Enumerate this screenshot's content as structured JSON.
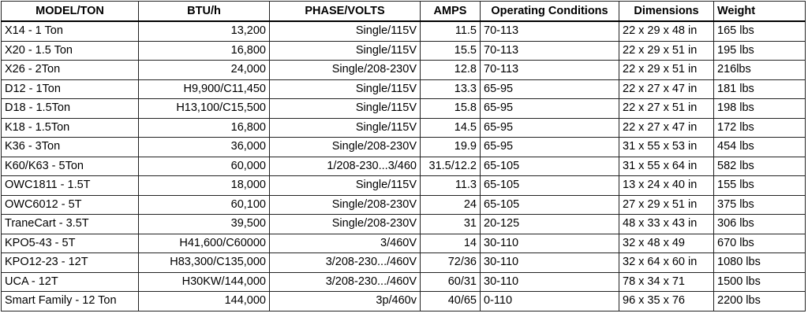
{
  "table": {
    "headers": [
      "MODEL/TON",
      "BTU/h",
      "PHASE/VOLTS",
      "AMPS",
      "Operating Conditions",
      "Dimensions",
      "Weight"
    ],
    "rows": [
      [
        "X14 - 1 Ton",
        "13,200",
        "Single/115V",
        "11.5",
        "70-113",
        "22 x 29 x 48 in",
        "165 lbs"
      ],
      [
        "X20 - 1.5 Ton",
        "16,800",
        "Single/115V",
        "15.5",
        "70-113",
        "22 x 29 x 51 in",
        "195 lbs"
      ],
      [
        "X26 - 2Ton",
        "24,000",
        "Single/208-230V",
        "12.8",
        "70-113",
        "22 x 29 x 51 in",
        "216lbs"
      ],
      [
        "D12 - 1Ton",
        "H9,900/C11,450",
        "Single/115V",
        "13.3",
        "65-95",
        "22 x 27 x 47 in",
        "181 lbs"
      ],
      [
        "D18 - 1.5Ton",
        "H13,100/C15,500",
        "Single/115V",
        "15.8",
        "65-95",
        "22 x 27 x 51 in",
        "198 lbs"
      ],
      [
        "K18 - 1.5Ton",
        "16,800",
        "Single/115V",
        "14.5",
        "65-95",
        "22 x 27 x 47 in",
        "172 lbs"
      ],
      [
        "K36 - 3Ton",
        "36,000",
        "Single/208-230V",
        "19.9",
        "65-95",
        "31 x 55 x 53 in",
        "454 lbs"
      ],
      [
        "K60/K63 - 5Ton",
        "60,000",
        "1/208-230...3/460",
        "31.5/12.2",
        "65-105",
        "31 x 55 x 64 in",
        "582 lbs"
      ],
      [
        "OWC1811 - 1.5T",
        "18,000",
        "Single/115V",
        "11.3",
        "65-105",
        "13 x 24 x 40 in",
        "155 lbs"
      ],
      [
        "OWC6012 - 5T",
        "60,100",
        "Single/208-230V",
        "24",
        "65-105",
        "27 x 29 x 51 in",
        "375 lbs"
      ],
      [
        "TraneCart - 3.5T",
        "39,500",
        "Single/208-230V",
        "31",
        "20-125",
        "48 x 33 x 43 in",
        "306 lbs"
      ],
      [
        "KPO5-43 - 5T",
        "H41,600/C60000",
        "3/460V",
        "14",
        "30-110",
        "32 x 48  x 49",
        "670 lbs"
      ],
      [
        "KPO12-23 - 12T",
        "H83,300/C135,000",
        "3/208-230.../460V",
        "72/36",
        "30-110",
        "32 x 64 x 60 in",
        "1080 lbs"
      ],
      [
        "UCA - 12T",
        "H30KW/144,000",
        "3/208-230.../460V",
        "60/31",
        "30-110",
        "78 x 34 x 71",
        "1500 lbs"
      ],
      [
        "Smart Family - 12 Ton",
        "144,000",
        "3p/460v",
        "40/65",
        "0-110",
        "96 x 35 x 76",
        "2200 lbs"
      ]
    ]
  }
}
